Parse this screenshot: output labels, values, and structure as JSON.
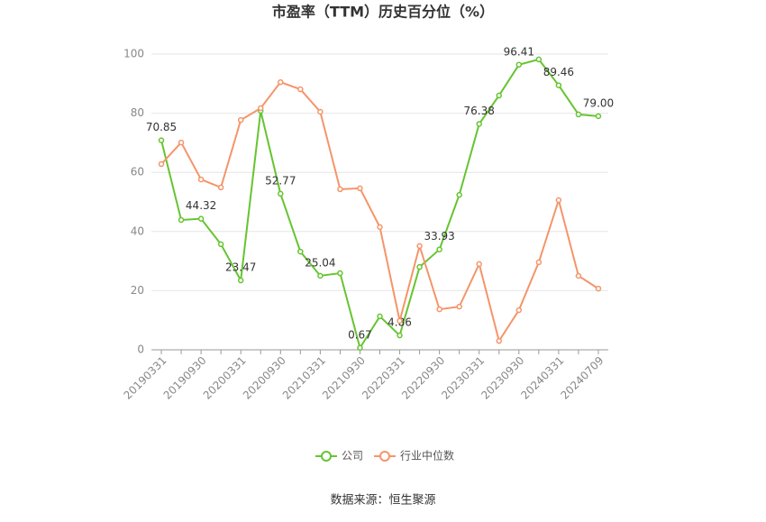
{
  "chart_data": {
    "type": "line",
    "title": "市盈率（TTM）历史百分位（%）",
    "categories": [
      "20190331",
      null,
      "20190930",
      null,
      "20200331",
      null,
      "20200930",
      null,
      "20210331",
      null,
      "20210930",
      null,
      "20220331",
      null,
      "20220930",
      null,
      "20230331",
      null,
      "20230930",
      null,
      "20240331",
      null,
      "20240709"
    ],
    "series": [
      {
        "name": "公司",
        "color": "#66c431",
        "values": [
          70.85,
          43.9,
          44.32,
          35.7,
          23.47,
          80.8,
          52.77,
          33.2,
          25.04,
          25.9,
          0.67,
          11.3,
          4.86,
          28.0,
          33.93,
          52.4,
          76.38,
          86.0,
          96.41,
          98.2,
          89.46,
          79.6,
          79.0
        ],
        "value_labels": [
          "70.85",
          null,
          "44.32",
          null,
          "23.47",
          null,
          "52.77",
          null,
          "25.04",
          null,
          "0.67",
          null,
          "4.86",
          null,
          "33.93",
          null,
          "76.38",
          null,
          "96.41",
          null,
          "89.46",
          null,
          "79.00"
        ]
      },
      {
        "name": "行业中位数",
        "color": "#f4956a",
        "values": [
          62.8,
          70.1,
          57.6,
          54.9,
          77.7,
          81.7,
          90.5,
          88.1,
          80.5,
          54.3,
          54.6,
          41.5,
          9.8,
          35.1,
          13.7,
          14.6,
          29.0,
          3.0,
          13.4,
          29.6,
          50.6,
          25.0,
          20.7
        ]
      }
    ],
    "ylim": [
      0,
      100
    ],
    "yticks": [
      0,
      20,
      40,
      60,
      80,
      100
    ],
    "grid": true,
    "legend": "bottom",
    "source": "数据来源：恒生聚源"
  }
}
